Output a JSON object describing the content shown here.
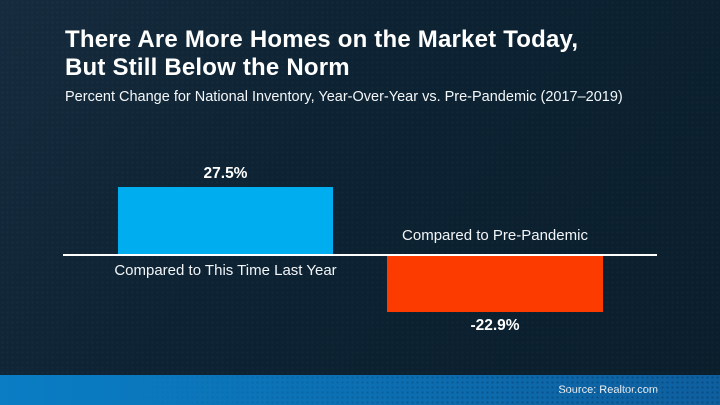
{
  "slide": {
    "title_line1": "There Are More Homes on the Market Today,",
    "title_line2": "But Still Below the Norm",
    "subtitle": "Percent Change for National Inventory, Year-Over-Year vs. Pre-Pandemic (2017–2019)",
    "source": "Source: Realtor.com",
    "background_color": "#0d2333",
    "footer_color": "#0c70b3"
  },
  "chart_data": {
    "type": "bar",
    "title": "There Are More Homes on the Market Today, But Still Below the Norm",
    "subtitle": "Percent Change for National Inventory, Year-Over-Year vs. Pre-Pandemic (2017–2019)",
    "categories": [
      "Compared to This Time Last Year",
      "Compared to Pre-Pandemic"
    ],
    "values": [
      27.5,
      -22.9
    ],
    "value_labels": [
      "27.5%",
      "-22.9%"
    ],
    "bar_colors": [
      "#00AEEF",
      "#FB3B00"
    ],
    "baseline_color": "#FFFFFF",
    "ylim": [
      -30,
      35
    ],
    "grid": false,
    "legend_position": "none",
    "source": "Source: Realtor.com"
  }
}
